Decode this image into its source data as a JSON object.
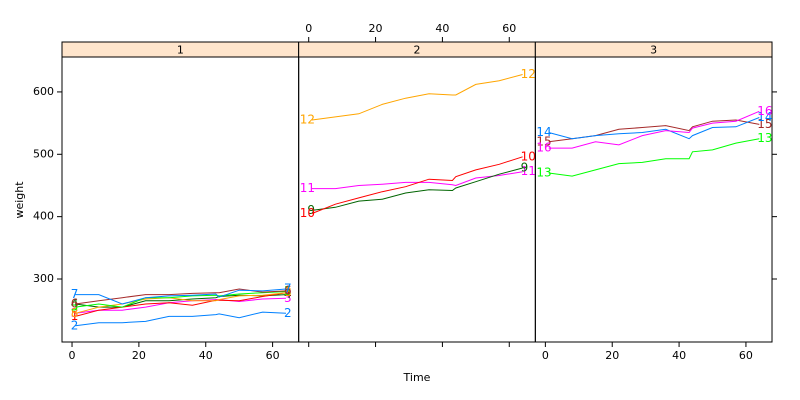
{
  "chart_data": {
    "type": "line",
    "x_label": "Time",
    "y_label": "weight",
    "x": [
      1,
      8,
      15,
      22,
      29,
      36,
      43,
      44,
      50,
      57,
      64
    ],
    "xlim": [
      -3,
      67.8
    ],
    "xticks": [
      0,
      20,
      40,
      60
    ],
    "ylim": [
      199,
      656
    ],
    "yticks": [
      300,
      400,
      500,
      600
    ],
    "strip_color": "#ffe5cc",
    "panels": [
      {
        "strip": "1",
        "series": [
          {
            "name": "2",
            "color": "#0080ff",
            "values": [
              225,
              230,
              230,
              232,
              240,
              240,
              243,
              244,
              238,
              247,
              245
            ]
          },
          {
            "name": "3",
            "color": "#ff00ff",
            "values": [
              245,
              250,
              250,
              255,
              262,
              265,
              267,
              267,
              264,
              268,
              269
            ]
          },
          {
            "name": "4",
            "color": "#006400",
            "values": [
              260,
              255,
              255,
              265,
              265,
              268,
              270,
              272,
              274,
              273,
              275
            ]
          },
          {
            "name": "1",
            "color": "#ff0000",
            "values": [
              240,
              250,
              255,
              260,
              262,
              258,
              266,
              266,
              265,
              272,
              278
            ]
          },
          {
            "name": "8",
            "color": "#ffa500",
            "values": [
              245,
              255,
              260,
              268,
              270,
              265,
              265,
              267,
              273,
              274,
              278
            ]
          },
          {
            "name": "5",
            "color": "#00ff00",
            "values": [
              255,
              260,
              255,
              270,
              270,
              273,
              274,
              273,
              276,
              278,
              280
            ]
          },
          {
            "name": "6",
            "color": "#a52a2a",
            "values": [
              260,
              265,
              270,
              275,
              275,
              277,
              278,
              278,
              284,
              279,
              281
            ]
          },
          {
            "name": "7",
            "color": "#0080ff",
            "values": [
              275,
              275,
              260,
              270,
              273,
              274,
              276,
              271,
              282,
              281,
              284
            ]
          }
        ]
      },
      {
        "strip": "2",
        "series": [
          {
            "name": "11",
            "color": "#ff00ff",
            "values": [
              445,
              445,
              450,
              452,
              455,
              455,
              451,
              450,
              462,
              466,
              472
            ]
          },
          {
            "name": "9",
            "color": "#006400",
            "values": [
              410,
              415,
              425,
              428,
              438,
              443,
              442,
              446,
              456,
              468,
              478
            ]
          },
          {
            "name": "10",
            "color": "#ff0000",
            "values": [
              405,
              420,
              430,
              440,
              448,
              460,
              458,
              464,
              475,
              484,
              496
            ]
          },
          {
            "name": "12",
            "color": "#ffa500",
            "values": [
              555,
              560,
              565,
              580,
              590,
              597,
              595,
              595,
              612,
              618,
              628
            ]
          }
        ]
      },
      {
        "strip": "3",
        "series": [
          {
            "name": "13",
            "color": "#00ff00",
            "values": [
              470,
              465,
              475,
              485,
              487,
              493,
              493,
              504,
              507,
              518,
              525
            ]
          },
          {
            "name": "15",
            "color": "#a52a2a",
            "values": [
              520,
              525,
              530,
              540,
              543,
              546,
              538,
              544,
              553,
              555,
              548
            ]
          },
          {
            "name": "14",
            "color": "#0080ff",
            "values": [
              535,
              525,
              530,
              533,
              535,
              540,
              525,
              530,
              543,
              544,
              559
            ]
          },
          {
            "name": "16",
            "color": "#ff00ff",
            "values": [
              510,
              510,
              520,
              515,
              530,
              538,
              535,
              542,
              550,
              553,
              569
            ]
          }
        ]
      }
    ]
  }
}
